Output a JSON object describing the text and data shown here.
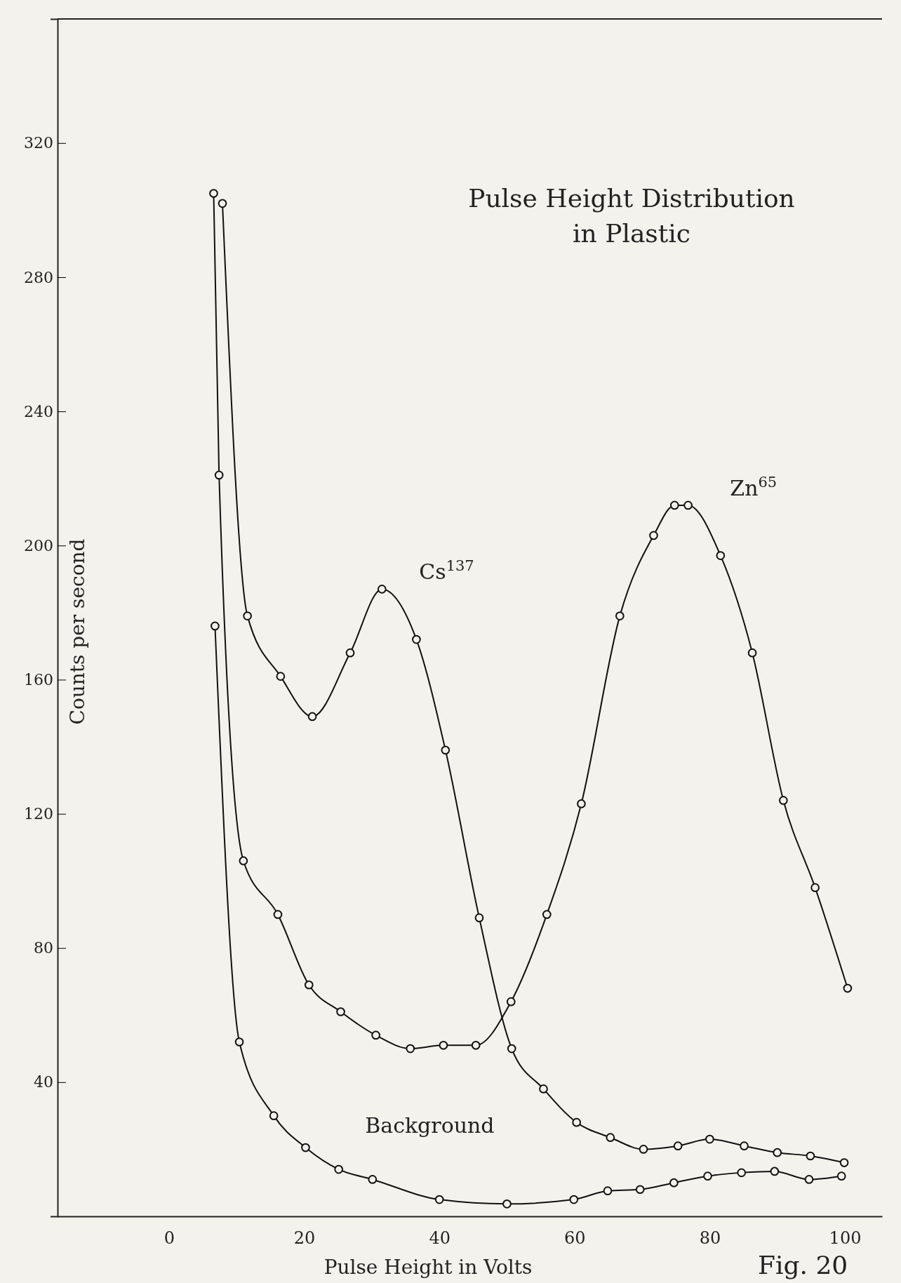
{
  "chart_data": {
    "type": "line",
    "title": "Pulse Height Distribution in Plastic",
    "xlabel": "Pulse Height in Volts",
    "ylabel": "Counts per second",
    "xlim": [
      -16.5,
      105.5
    ],
    "ylim": [
      0,
      357
    ],
    "xticks": [
      0,
      20,
      40,
      60,
      80,
      100
    ],
    "yticks": [
      40,
      80,
      120,
      160,
      200,
      240,
      280,
      320
    ],
    "grid": false,
    "marker": "circle",
    "line_style": "solid",
    "series": [
      {
        "color": "#111111",
        "x": [
          7.9,
          11.6,
          16.5,
          21.2,
          26.8,
          31.5,
          36.6,
          40.9,
          45.9,
          50.7,
          55.4,
          60.3,
          65.3,
          70.2,
          75.3,
          80,
          85.1,
          90,
          94.9,
          99.9
        ],
        "values": [
          302,
          179,
          161,
          149,
          168,
          187,
          172,
          139,
          89,
          50,
          38,
          28,
          23.5,
          20,
          21,
          23,
          21,
          19,
          18,
          16
        ]
      },
      {
        "color": "#111111",
        "x": [
          6.6,
          7.4,
          11,
          16.1,
          20.7,
          25.4,
          30.6,
          35.7,
          40.6,
          45.4,
          50.6,
          55.9,
          61,
          66.7,
          71.7,
          74.8,
          76.8,
          81.6,
          86.3,
          90.9,
          95.6,
          100.4
        ],
        "values": [
          305,
          221,
          106,
          90,
          69,
          61,
          54,
          50,
          51,
          51,
          64,
          90,
          123,
          179,
          203,
          212,
          212,
          197,
          168,
          124,
          98,
          68
        ]
      },
      {
        "color": "#111111",
        "x": [
          6.8,
          10.4,
          15.5,
          20.2,
          25.1,
          30.1,
          40,
          50,
          59.9,
          64.9,
          69.7,
          74.7,
          79.7,
          84.7,
          89.6,
          94.7,
          99.5
        ],
        "values": [
          176,
          52,
          30,
          20.5,
          14,
          11,
          5,
          3.7,
          5,
          7.6,
          8,
          10,
          12,
          13,
          13.4,
          11,
          12
        ]
      }
    ],
    "annotations": [
      "Cs$^{137}$",
      "Zn$^{65}$",
      "Background",
      "Fig. 20"
    ]
  }
}
